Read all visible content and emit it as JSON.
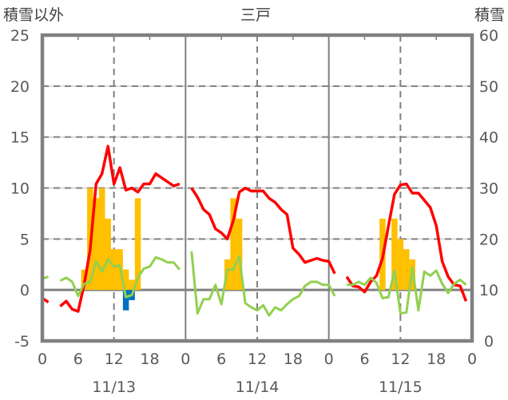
{
  "chart_data": {
    "type": "bar+line",
    "title": "三戸",
    "left_axis_label": "積雪以外",
    "right_axis_label": "積雪",
    "left_ylim": [
      -5,
      25
    ],
    "left_ticks": [
      "25",
      "20",
      "15",
      "10",
      "5",
      "0",
      "-5"
    ],
    "right_ylim": [
      0,
      60
    ],
    "right_ticks": [
      "60",
      "50",
      "40",
      "30",
      "20",
      "10",
      "0"
    ],
    "x_hours_range": [
      0,
      72
    ],
    "x_tick_labels": [
      "0",
      "6",
      "12",
      "18",
      "0",
      "6",
      "12",
      "18",
      "0",
      "6",
      "12",
      "18",
      "0"
    ],
    "date_labels": [
      "11/13",
      "11/14",
      "11/15"
    ],
    "grid": true,
    "colors": {
      "temperature": "#ff0000",
      "wind": "#92d050",
      "bar_positive": "#ffc000",
      "bar_negative": "#0070c0",
      "snow_depth": "#7030a0",
      "frame": "#808080"
    },
    "series": [
      {
        "name": "red line",
        "axis": "left",
        "kind": "line",
        "color": "#ff0000",
        "values": [
          -0.8,
          -1.2,
          null,
          -1.6,
          -1.1,
          -1.9,
          -2.1,
          0.5,
          3.9,
          10.4,
          11.4,
          14.1,
          10.4,
          12.0,
          9.8,
          10.0,
          9.6,
          10.4,
          10.4,
          11.4,
          11.0,
          10.6,
          10.2,
          10.4,
          null,
          10.0,
          9.1,
          7.9,
          7.4,
          6.0,
          5.6,
          5.0,
          6.8,
          9.6,
          10.0,
          9.7,
          9.7,
          9.7,
          9.0,
          8.6,
          7.9,
          7.4,
          4.1,
          3.5,
          2.7,
          2.9,
          3.1,
          2.9,
          2.8,
          1.6,
          null,
          1.3,
          0.4,
          0.3,
          -0.2,
          0.8,
          1.4,
          3.1,
          6.3,
          9.4,
          10.3,
          10.4,
          9.5,
          9.5,
          8.8,
          8.1,
          6.3,
          2.8,
          1.3,
          0.5,
          0.4,
          -1.1
        ]
      },
      {
        "name": "green line",
        "axis": "left",
        "kind": "line",
        "color": "#92d050",
        "values": [
          1.1,
          1.3,
          null,
          0.9,
          1.2,
          0.8,
          -0.6,
          0.6,
          0.8,
          2.8,
          1.8,
          3.0,
          2.3,
          2.4,
          -0.7,
          -0.5,
          1.2,
          2.1,
          2.3,
          3.2,
          3.0,
          2.7,
          2.7,
          2.0,
          null,
          3.8,
          -2.3,
          -0.9,
          -0.9,
          0.5,
          -1.4,
          2.0,
          2.0,
          3.3,
          -1.3,
          -1.7,
          -2.0,
          -1.5,
          -2.5,
          -1.7,
          -2.0,
          -1.4,
          -0.9,
          -0.6,
          0.4,
          0.8,
          0.8,
          0.5,
          0.5,
          -0.6,
          null,
          0.5,
          0.5,
          0.8,
          0.5,
          1.2,
          0.7,
          -0.8,
          -0.7,
          1.9,
          -2.3,
          -2.2,
          2.2,
          -2.0,
          1.8,
          1.4,
          1.9,
          0.6,
          -0.3,
          0.6,
          1.0,
          0.5
        ]
      },
      {
        "name": "yellow bars",
        "axis": "left",
        "kind": "bar",
        "color": "#ffc000",
        "values": [
          null,
          null,
          null,
          null,
          null,
          null,
          null,
          2,
          10,
          9,
          10,
          7,
          4,
          4,
          2,
          1,
          9,
          null,
          null,
          null,
          null,
          null,
          null,
          null,
          null,
          null,
          null,
          null,
          null,
          null,
          null,
          3,
          9,
          7,
          null,
          null,
          null,
          null,
          null,
          null,
          null,
          null,
          null,
          null,
          null,
          null,
          null,
          null,
          null,
          null,
          null,
          null,
          null,
          null,
          null,
          null,
          null,
          7,
          null,
          7,
          5,
          4,
          3,
          null,
          null,
          null,
          null,
          null,
          null,
          null,
          null,
          null
        ]
      },
      {
        "name": "blue bars",
        "axis": "left",
        "kind": "bar",
        "color": "#0070c0",
        "values": [
          null,
          null,
          null,
          null,
          null,
          null,
          null,
          null,
          null,
          null,
          null,
          null,
          null,
          null,
          -2,
          -1,
          null,
          null,
          null,
          null,
          null,
          null,
          null,
          null,
          null,
          null,
          null,
          null,
          null,
          null,
          null,
          null,
          null,
          null,
          null,
          null,
          null,
          null,
          null,
          null,
          null,
          null,
          null,
          null,
          null,
          null,
          null,
          null,
          null,
          null,
          null,
          null,
          null,
          null,
          null,
          null,
          null,
          null,
          null,
          null,
          null,
          null,
          null,
          null,
          null,
          null,
          null,
          null,
          null,
          null,
          null,
          null
        ]
      },
      {
        "name": "snow depth",
        "axis": "right",
        "kind": "line",
        "color": "#7030a0",
        "values": [
          0,
          0,
          null,
          0,
          0,
          0,
          0,
          0,
          0,
          0,
          0,
          0,
          0,
          0,
          0,
          0,
          0,
          0,
          0,
          0,
          0,
          0,
          0,
          0,
          null,
          0,
          0,
          0,
          0,
          0,
          0,
          0,
          0,
          0,
          0,
          0,
          0,
          0,
          0,
          0,
          0,
          0,
          0,
          0,
          0,
          0,
          0,
          0,
          0,
          0,
          null,
          0,
          0,
          0,
          0,
          0,
          0,
          0,
          0,
          0,
          0,
          0,
          0,
          0,
          0,
          0,
          0,
          0,
          0,
          0,
          0,
          0
        ]
      }
    ]
  }
}
